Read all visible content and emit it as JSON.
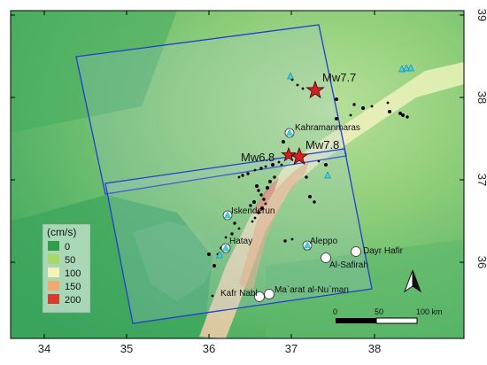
{
  "map": {
    "x_ticks": [
      "34",
      "35",
      "36",
      "37",
      "38"
    ],
    "y_ticks": [
      "36",
      "37",
      "38",
      "39"
    ],
    "colors": {
      "frame": "#000000",
      "footprint": "#1f3fcf",
      "star": "#d62020",
      "station": "#3fd0e8",
      "city": "#ffffff"
    }
  },
  "earthquakes": [
    {
      "label": "Mw7.7",
      "icon": "star-icon"
    },
    {
      "label": "Mw7.8",
      "icon": "star-icon"
    },
    {
      "label": "Mw6.8",
      "icon": "star-icon"
    }
  ],
  "cities": [
    {
      "name": "Kahramanmaras",
      "icon": "station-icon"
    },
    {
      "name": "Iskenderun",
      "icon": "station-icon"
    },
    {
      "name": "Hatay",
      "icon": "station-icon"
    },
    {
      "name": "Aleppo",
      "icon": "station-icon"
    },
    {
      "name": "Dayr Hafir",
      "icon": "city-icon"
    },
    {
      "name": "Al-Safirah",
      "icon": "city-icon"
    },
    {
      "name": "Kafr Nabl",
      "icon": "city-icon"
    },
    {
      "name": "Ma`arat al-Nu`man",
      "icon": "city-icon"
    }
  ],
  "legend": {
    "title": "(cm/s)",
    "items": [
      {
        "label": "0",
        "color": "#2e9e4a"
      },
      {
        "label": "50",
        "color": "#a9d86a"
      },
      {
        "label": "100",
        "color": "#f6f2b6"
      },
      {
        "label": "150",
        "color": "#f2a970"
      },
      {
        "label": "200",
        "color": "#d93a2e"
      }
    ]
  },
  "scale_bar": {
    "labels": [
      "0",
      "50",
      "100 km"
    ]
  },
  "north_arrow": {
    "icon": "north-arrow-icon"
  }
}
